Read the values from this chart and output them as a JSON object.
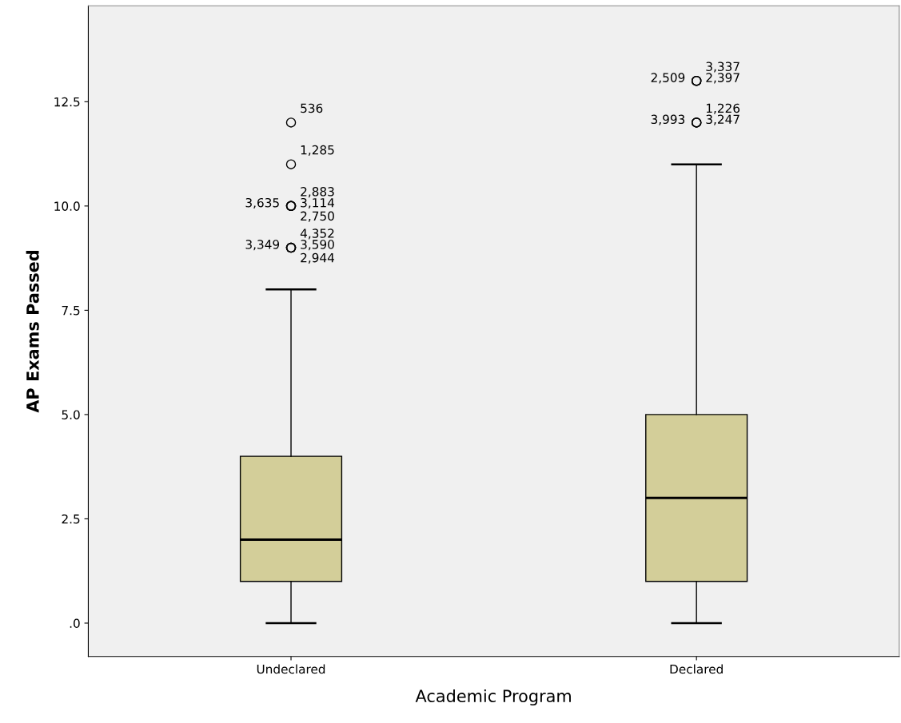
{
  "chart_data": {
    "type": "box",
    "xlabel": "Academic Program",
    "ylabel": "AP Exams Passed",
    "categories": [
      "Undeclared",
      "Declared"
    ],
    "boxes": [
      {
        "low": 0,
        "q1": 1,
        "median": 2,
        "q3": 4,
        "high": 8,
        "outliers": [
          12,
          11,
          10,
          10,
          10,
          10,
          9,
          9,
          9,
          9
        ]
      },
      {
        "low": 0,
        "q1": 1,
        "median": 3,
        "q3": 5,
        "high": 11,
        "outliers": [
          13,
          13,
          13,
          12,
          12,
          12
        ]
      }
    ],
    "color": "#d3ce99",
    "annotations": [
      "536",
      "1,285",
      "2,883",
      "3,635",
      "3,114",
      "2,750",
      "4,352",
      "3,349",
      "3,590",
      "2,944",
      "3,337",
      "2,509",
      "2,397",
      "1,226",
      "3,993",
      "3,247"
    ],
    "ylim": [
      -0.8,
      14.8
    ],
    "yticks": [
      {
        "value": 0,
        "label": ".0"
      },
      {
        "value": 2.5,
        "label": "2.5"
      },
      {
        "value": 5,
        "label": "5.0"
      },
      {
        "value": 7.5,
        "label": "7.5"
      },
      {
        "value": 10,
        "label": "10.0"
      },
      {
        "value": 12.5,
        "label": "12.5"
      }
    ],
    "grid": false
  }
}
